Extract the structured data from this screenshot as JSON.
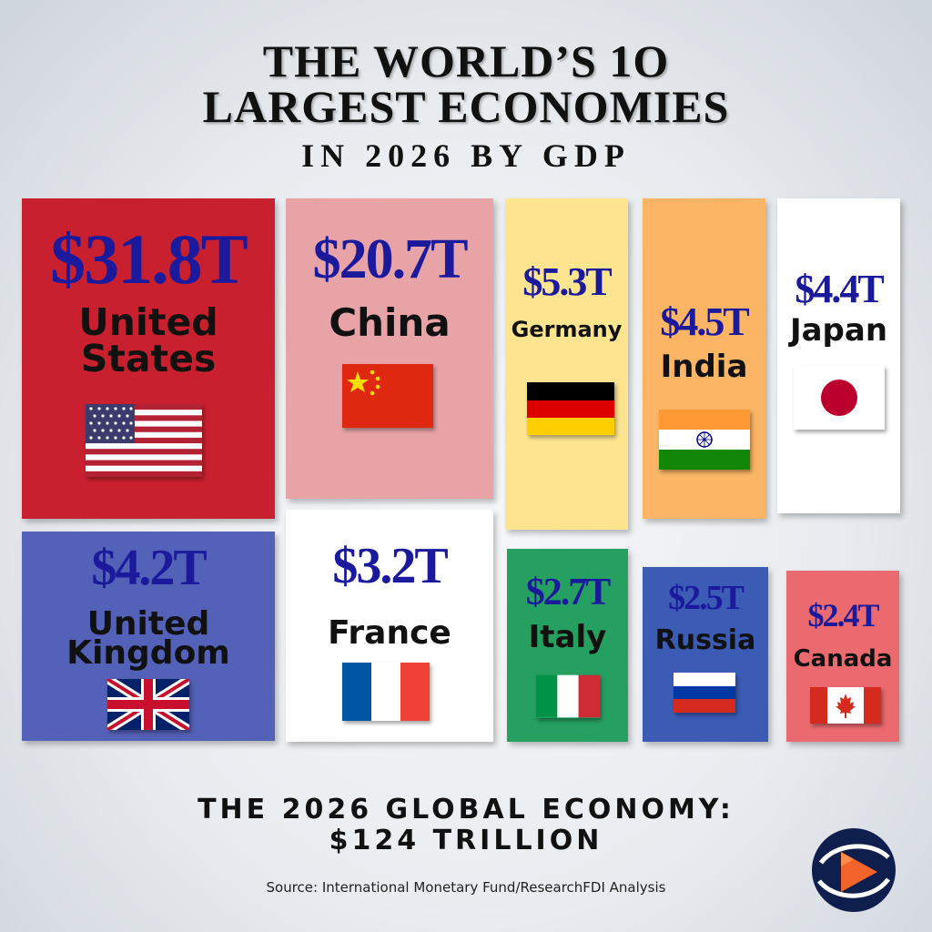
{
  "title_line1": "THE WORLD’S 1O",
  "title_line2": "LARGEST ECONOMIES",
  "subtitle": "IN 2026 BY GDP",
  "footer_line1": "THE 2026 GLOBAL ECONOMY:",
  "footer_line2": "$124 TRILLION",
  "source": "Source: International Monetary Fund/ResearchFDI Analysis",
  "logo_icon": "play-globe-icon",
  "colors": {
    "value_text": "#1c1a9c",
    "united_states": "#c8202f",
    "china": "#e8a3a7",
    "germany": "#fde48f",
    "india": "#fbb565",
    "japan": "#ffffff",
    "united_kingdom": "#5461b8",
    "france": "#ffffff",
    "italy": "#26a060",
    "russia": "#3b5bb5",
    "canada": "#ea6a70"
  },
  "tiles": [
    {
      "value": "$31.8T",
      "name_line1": "United",
      "name_line2": "States",
      "flag_icon": "us-flag-icon"
    },
    {
      "value": "$20.7T",
      "name_line1": "China",
      "name_line2": "",
      "flag_icon": "china-flag-icon"
    },
    {
      "value": "$5.3T",
      "name_line1": "Germany",
      "name_line2": "",
      "flag_icon": "germany-flag-icon"
    },
    {
      "value": "$4.5T",
      "name_line1": "India",
      "name_line2": "",
      "flag_icon": "india-flag-icon"
    },
    {
      "value": "$4.4T",
      "name_line1": "Japan",
      "name_line2": "",
      "flag_icon": "japan-flag-icon"
    },
    {
      "value": "$4.2T",
      "name_line1": "United",
      "name_line2": "Kingdom",
      "flag_icon": "uk-flag-icon"
    },
    {
      "value": "$3.2T",
      "name_line1": "France",
      "name_line2": "",
      "flag_icon": "france-flag-icon"
    },
    {
      "value": "$2.7T",
      "name_line1": "Italy",
      "name_line2": "",
      "flag_icon": "italy-flag-icon"
    },
    {
      "value": "$2.5T",
      "name_line1": "Russia",
      "name_line2": "",
      "flag_icon": "russia-flag-icon"
    },
    {
      "value": "$2.4T",
      "name_line1": "Canada",
      "name_line2": "",
      "flag_icon": "canada-flag-icon"
    }
  ],
  "chart_data": {
    "type": "treemap",
    "unit": "$T",
    "categories": [
      "United States",
      "China",
      "Germany",
      "India",
      "Japan",
      "United Kingdom",
      "France",
      "Italy",
      "Russia",
      "Canada"
    ],
    "values": [
      31.8,
      20.7,
      5.3,
      4.5,
      4.4,
      4.2,
      3.2,
      2.7,
      2.5,
      2.4
    ],
    "total_label": "$124 TRILLION"
  }
}
